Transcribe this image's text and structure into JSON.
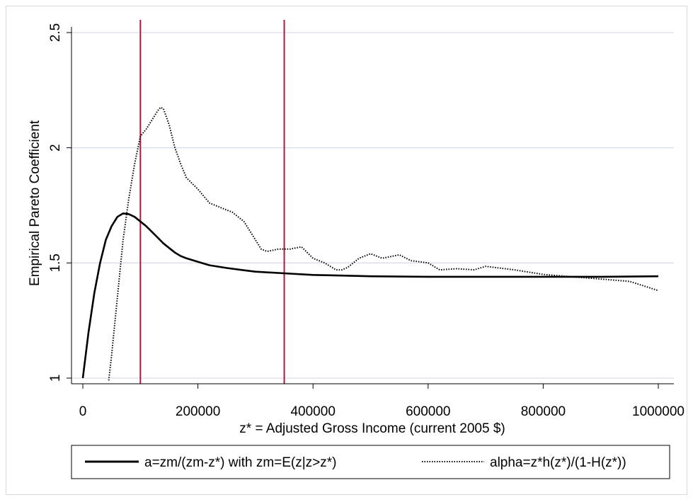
{
  "chart_data": {
    "type": "line",
    "title": "",
    "xlabel": "z* = Adjusted Gross Income (current 2005 $)",
    "ylabel": "Empirical Pareto Coefficient",
    "xlim": [
      0,
      1000000
    ],
    "ylim": [
      0.95,
      2.5
    ],
    "x_ticks": [
      0,
      200000,
      400000,
      600000,
      800000,
      1000000
    ],
    "x_tick_labels": [
      "0",
      "200000",
      "400000",
      "600000",
      "800000",
      "1000000"
    ],
    "y_ticks": [
      1,
      1.5,
      2,
      2.5
    ],
    "y_tick_labels": [
      "1",
      "1.5",
      "2",
      "2.5"
    ],
    "grid": "horizontal",
    "legend_position": "bottom",
    "vertical_lines": [
      {
        "x": 100000,
        "color": "#b5163f"
      },
      {
        "x": 350000,
        "color": "#b5163f"
      }
    ],
    "series": [
      {
        "name": "a=zm/(zm-z*) with zm=E(z|z>z*)",
        "style": "solid",
        "x": [
          0,
          10000,
          20000,
          30000,
          40000,
          50000,
          60000,
          70000,
          80000,
          90000,
          100000,
          110000,
          120000,
          130000,
          140000,
          150000,
          160000,
          170000,
          180000,
          200000,
          220000,
          250000,
          280000,
          300000,
          350000,
          400000,
          450000,
          500000,
          600000,
          700000,
          800000,
          900000,
          1000000
        ],
        "y": [
          1.0,
          1.2,
          1.37,
          1.5,
          1.6,
          1.66,
          1.7,
          1.715,
          1.712,
          1.7,
          1.68,
          1.66,
          1.635,
          1.61,
          1.585,
          1.565,
          1.545,
          1.53,
          1.52,
          1.505,
          1.49,
          1.478,
          1.468,
          1.462,
          1.455,
          1.448,
          1.445,
          1.442,
          1.44,
          1.44,
          1.44,
          1.44,
          1.442
        ]
      },
      {
        "name": "alpha=z*h(z*)/(1-H(z*))",
        "style": "dotted",
        "x": [
          45000,
          50000,
          60000,
          70000,
          80000,
          90000,
          100000,
          110000,
          120000,
          130000,
          135000,
          140000,
          150000,
          160000,
          170000,
          180000,
          200000,
          220000,
          240000,
          260000,
          280000,
          300000,
          310000,
          320000,
          340000,
          350000,
          360000,
          380000,
          400000,
          420000,
          440000,
          450000,
          460000,
          480000,
          500000,
          520000,
          550000,
          570000,
          600000,
          620000,
          650000,
          680000,
          700000,
          750000,
          800000,
          850000,
          900000,
          950000,
          1000000
        ],
        "y": [
          0.99,
          1.1,
          1.35,
          1.6,
          1.78,
          1.93,
          2.05,
          2.08,
          2.12,
          2.16,
          2.175,
          2.17,
          2.1,
          2.0,
          1.93,
          1.87,
          1.82,
          1.76,
          1.74,
          1.72,
          1.68,
          1.6,
          1.56,
          1.55,
          1.56,
          1.56,
          1.56,
          1.57,
          1.52,
          1.5,
          1.47,
          1.47,
          1.48,
          1.52,
          1.54,
          1.52,
          1.535,
          1.51,
          1.5,
          1.47,
          1.475,
          1.47,
          1.485,
          1.47,
          1.45,
          1.44,
          1.43,
          1.42,
          1.38
        ]
      }
    ]
  }
}
